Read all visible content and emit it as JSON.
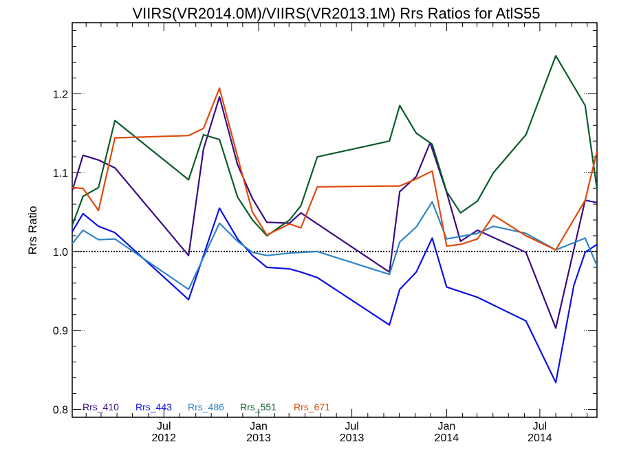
{
  "chart_data": {
    "type": "line",
    "title": "VIIRS(VR2014.0M)/VIIRS(VR2013.1M)  Rrs Ratios for AtlS55",
    "xlabel": "",
    "ylabel": "Rrs Ratio",
    "xlim": [
      "2012-01-05",
      "2014-10-20"
    ],
    "ylim": [
      0.79,
      1.29
    ],
    "yticks": [
      0.8,
      0.9,
      1.0,
      1.1,
      1.2
    ],
    "ytick_labels": [
      "0.8",
      "0.9",
      "1.0",
      "1.1",
      "1.2"
    ],
    "xticks": [
      {
        "date": "2012-07-01",
        "month": "Jul",
        "year": "2012"
      },
      {
        "date": "2013-01-01",
        "month": "Jan",
        "year": "2013"
      },
      {
        "date": "2013-07-01",
        "month": "Jul",
        "year": "2013"
      },
      {
        "date": "2014-01-01",
        "month": "Jan",
        "year": "2014"
      },
      {
        "date": "2014-07-01",
        "month": "Jul",
        "year": "2014"
      }
    ],
    "reference_line": 1.0,
    "legend_position": "bottom-left",
    "series": [
      {
        "name": "Rrs_410",
        "color": "#3a0a82",
        "x": [
          "2012-01-05",
          "2012-01-26",
          "2012-02-25",
          "2012-03-28",
          "2012-08-18",
          "2012-09-16",
          "2012-10-17",
          "2012-11-21",
          "2012-12-20",
          "2013-01-17",
          "2013-03-02",
          "2013-03-24",
          "2013-09-12",
          "2013-10-02",
          "2013-11-03",
          "2013-11-30",
          "2014-01-01",
          "2014-01-28",
          "2014-03-02",
          "2014-06-04",
          "2014-08-01",
          "2014-09-27",
          "2014-10-20"
        ],
        "y": [
          1.077,
          1.122,
          1.116,
          1.106,
          0.995,
          1.13,
          1.196,
          1.11,
          1.067,
          1.037,
          1.036,
          1.049,
          0.974,
          1.076,
          1.095,
          1.138,
          1.075,
          1.013,
          1.027,
          0.999,
          0.903,
          1.065,
          1.062
        ]
      },
      {
        "name": "Rrs_443",
        "color": "#0a10e8",
        "x": [
          "2012-01-05",
          "2012-01-26",
          "2012-02-25",
          "2012-03-28",
          "2012-08-18",
          "2012-10-17",
          "2012-11-21",
          "2012-12-20",
          "2013-01-17",
          "2013-03-02",
          "2013-03-24",
          "2013-04-25",
          "2013-09-12",
          "2013-10-02",
          "2013-11-03",
          "2013-12-04",
          "2014-01-01",
          "2014-03-02",
          "2014-06-04",
          "2014-08-01",
          "2014-09-05",
          "2014-09-27",
          "2014-10-20"
        ],
        "y": [
          1.025,
          1.048,
          1.032,
          1.024,
          0.939,
          1.055,
          1.016,
          0.995,
          0.98,
          0.978,
          0.974,
          0.967,
          0.907,
          0.952,
          0.974,
          1.017,
          0.955,
          0.942,
          0.912,
          0.834,
          0.957,
          0.999,
          1.009
        ]
      },
      {
        "name": "Rrs_486",
        "color": "#2f84c4",
        "x": [
          "2012-01-05",
          "2012-01-26",
          "2012-02-25",
          "2012-03-28",
          "2012-08-18",
          "2012-10-17",
          "2012-11-21",
          "2012-12-20",
          "2013-01-17",
          "2013-03-02",
          "2013-03-24",
          "2013-04-25",
          "2013-09-12",
          "2013-10-02",
          "2013-11-03",
          "2013-12-04",
          "2014-01-01",
          "2014-03-02",
          "2014-04-02",
          "2014-06-04",
          "2014-08-01",
          "2014-09-27",
          "2014-10-20"
        ],
        "y": [
          1.01,
          1.027,
          1.015,
          1.016,
          0.952,
          1.036,
          1.013,
          0.999,
          0.995,
          0.998,
          0.999,
          1.0,
          0.971,
          1.012,
          1.031,
          1.063,
          1.016,
          1.023,
          1.032,
          1.023,
          1.002,
          1.017,
          0.982
        ]
      },
      {
        "name": "Rrs_551",
        "color": "#0a5c2a",
        "x": [
          "2012-01-05",
          "2012-01-26",
          "2012-02-25",
          "2012-03-28",
          "2012-08-18",
          "2012-09-16",
          "2012-10-17",
          "2012-11-21",
          "2012-12-20",
          "2013-01-17",
          "2013-03-02",
          "2013-03-24",
          "2013-04-25",
          "2013-09-12",
          "2013-10-02",
          "2013-11-03",
          "2013-12-04",
          "2014-01-01",
          "2014-01-28",
          "2014-03-02",
          "2014-04-02",
          "2014-06-04",
          "2014-08-01",
          "2014-09-27",
          "2014-10-20"
        ],
        "y": [
          1.033,
          1.07,
          1.081,
          1.166,
          1.091,
          1.148,
          1.142,
          1.069,
          1.04,
          1.02,
          1.04,
          1.058,
          1.12,
          1.14,
          1.185,
          1.15,
          1.136,
          1.076,
          1.049,
          1.064,
          1.1,
          1.148,
          1.248,
          1.185,
          1.079
        ]
      },
      {
        "name": "Rrs_671",
        "color": "#e04a0a",
        "x": [
          "2012-01-05",
          "2012-01-26",
          "2012-02-25",
          "2012-03-28",
          "2012-08-18",
          "2012-09-16",
          "2012-10-17",
          "2012-11-21",
          "2012-12-20",
          "2013-01-17",
          "2013-03-02",
          "2013-03-24",
          "2013-04-25",
          "2013-09-12",
          "2013-10-02",
          "2013-11-03",
          "2013-12-04",
          "2014-01-01",
          "2014-01-28",
          "2014-03-02",
          "2014-04-02",
          "2014-06-04",
          "2014-08-01",
          "2014-09-27",
          "2014-10-20"
        ],
        "y": [
          1.081,
          1.08,
          1.052,
          1.144,
          1.147,
          1.156,
          1.207,
          1.12,
          1.05,
          1.021,
          1.035,
          1.03,
          1.082,
          1.083,
          1.083,
          1.092,
          1.102,
          1.007,
          1.009,
          1.016,
          1.046,
          1.02,
          1.002,
          1.065,
          1.127
        ]
      }
    ]
  }
}
